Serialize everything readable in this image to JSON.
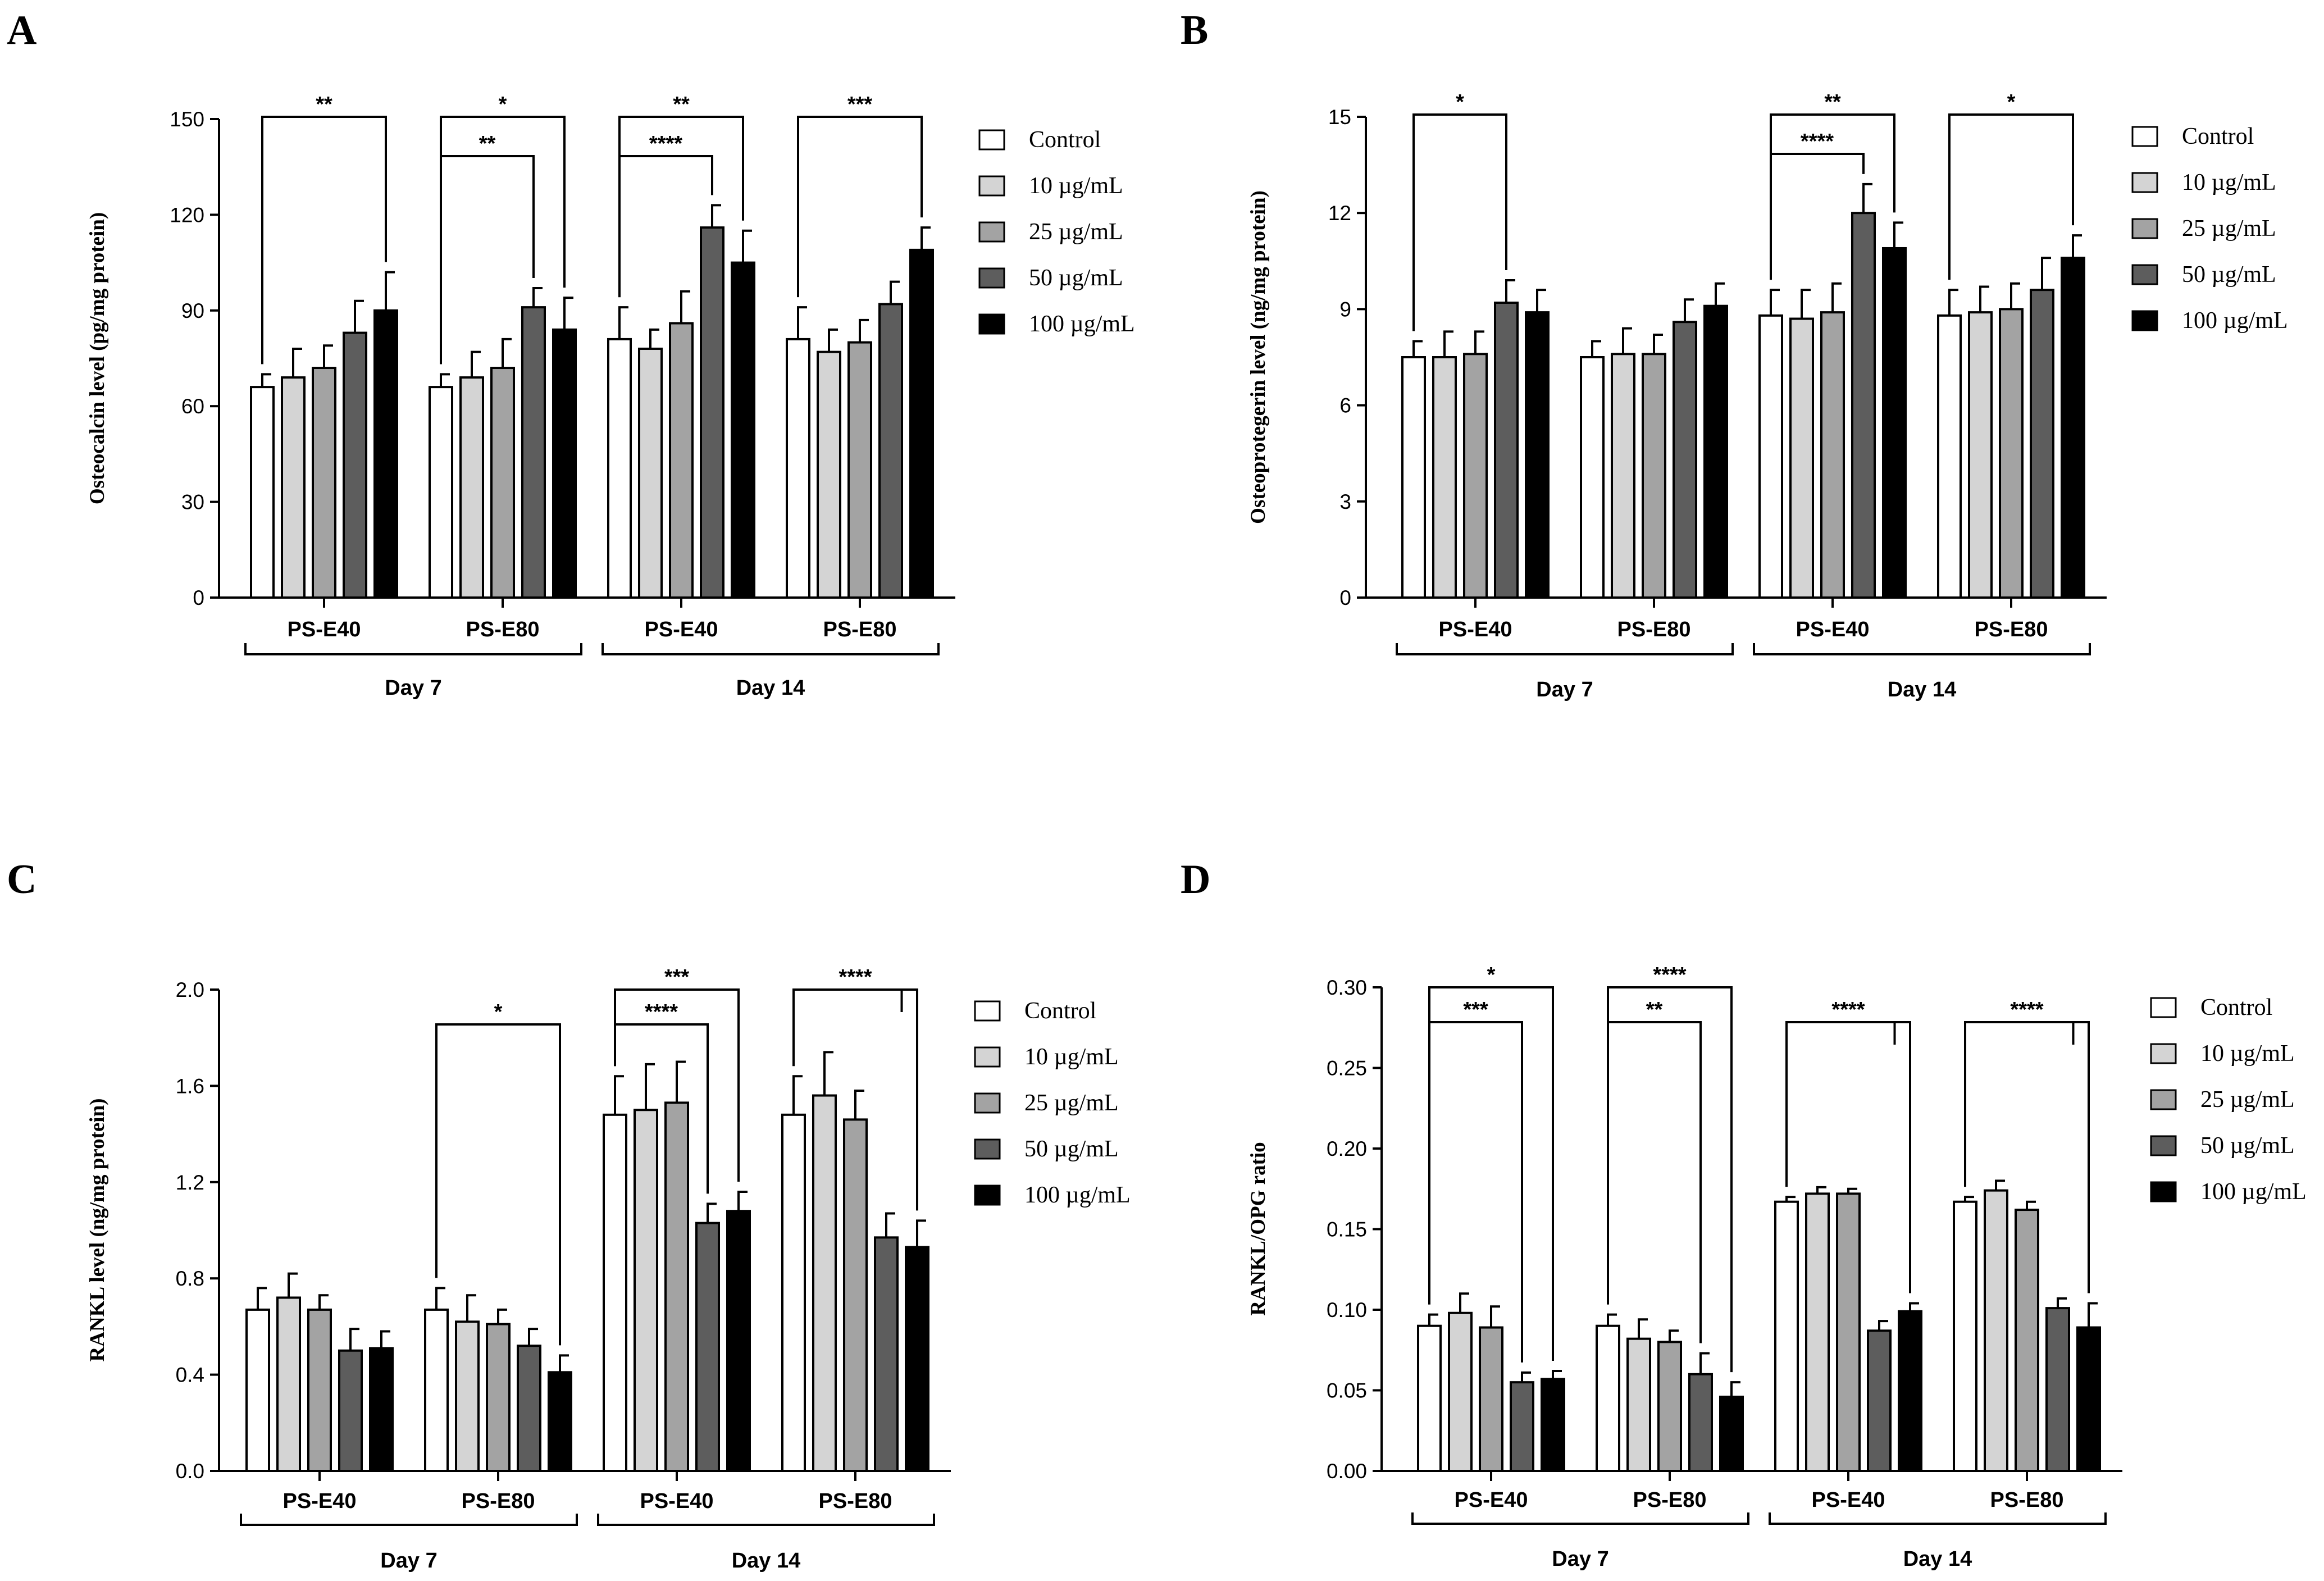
{
  "colors": {
    "control": "#ffffff",
    "c10": "#d4d4d4",
    "c25": "#a3a3a3",
    "c50": "#5d5d5d",
    "c100": "#000000",
    "ink": "#000000"
  },
  "legend": [
    "Control",
    "10 µg/mL",
    "25 µg/mL",
    "50 µg/mL",
    "100 µg/mL"
  ],
  "chart_data": [
    {
      "panel": "A",
      "type": "bar",
      "ylabel": "Osteocalcin level (pg/mg protein)",
      "ylim": [
        0,
        150
      ],
      "yticks": [
        "0",
        "30",
        "60",
        "90",
        "120",
        "150"
      ],
      "categories": [
        "PS-E40",
        "PS-E80",
        "PS-E40",
        "PS-E80"
      ],
      "groups": [
        {
          "label": "Day 7",
          "span": [
            0,
            1
          ]
        },
        {
          "label": "Day 14",
          "span": [
            2,
            3
          ]
        }
      ],
      "series": [
        {
          "name": "Control",
          "values": [
            66,
            66,
            81,
            81
          ],
          "errors": [
            4,
            4,
            10,
            10
          ]
        },
        {
          "name": "10 µg/mL",
          "values": [
            69,
            69,
            78,
            77
          ],
          "errors": [
            9,
            8,
            6,
            7
          ]
        },
        {
          "name": "25 µg/mL",
          "values": [
            72,
            72,
            86,
            80
          ],
          "errors": [
            7,
            9,
            10,
            7
          ]
        },
        {
          "name": "50 µg/mL",
          "values": [
            83,
            91,
            116,
            92
          ],
          "errors": [
            10,
            6,
            7,
            7
          ]
        },
        {
          "name": "100 µg/mL",
          "values": [
            90,
            84,
            105,
            109
          ],
          "errors": [
            12,
            10,
            10,
            7
          ]
        }
      ],
      "annotations": [
        {
          "text": "**",
          "cat": 0,
          "from": 0,
          "to": 4,
          "level": 1
        },
        {
          "text": "*",
          "cat": 1,
          "from": 0,
          "to": 4,
          "level": 1
        },
        {
          "text": "**",
          "cat": 1,
          "from": 0,
          "to": 3,
          "level": 0
        },
        {
          "text": "**",
          "cat": 2,
          "from": 0,
          "to": 4,
          "level": 1
        },
        {
          "text": "****",
          "cat": 2,
          "from": 0,
          "to": 3,
          "level": 0
        },
        {
          "text": "***",
          "cat": 3,
          "from": 0,
          "to": 4,
          "level": 1
        }
      ]
    },
    {
      "panel": "B",
      "type": "bar",
      "ylabel": "Osteoprotegerin level (ng/mg protein)",
      "ylim": [
        0,
        15
      ],
      "yticks": [
        "0",
        "3",
        "6",
        "9",
        "12",
        "15"
      ],
      "categories": [
        "PS-E40",
        "PS-E80",
        "PS-E40",
        "PS-E80"
      ],
      "groups": [
        {
          "label": "Day 7",
          "span": [
            0,
            1
          ]
        },
        {
          "label": "Day 14",
          "span": [
            2,
            3
          ]
        }
      ],
      "series": [
        {
          "name": "Control",
          "values": [
            7.5,
            7.5,
            8.8,
            8.8
          ],
          "errors": [
            0.5,
            0.5,
            0.8,
            0.8
          ]
        },
        {
          "name": "10 µg/mL",
          "values": [
            7.5,
            7.6,
            8.7,
            8.9
          ],
          "errors": [
            0.8,
            0.8,
            0.9,
            0.8
          ]
        },
        {
          "name": "25 µg/mL",
          "values": [
            7.6,
            7.6,
            8.9,
            9.0
          ],
          "errors": [
            0.7,
            0.6,
            0.9,
            0.8
          ]
        },
        {
          "name": "50 µg/mL",
          "values": [
            9.2,
            8.6,
            12.0,
            9.6
          ],
          "errors": [
            0.7,
            0.7,
            0.9,
            1.0
          ]
        },
        {
          "name": "100 µg/mL",
          "values": [
            8.9,
            9.1,
            10.9,
            10.6
          ],
          "errors": [
            0.7,
            0.7,
            0.8,
            0.7
          ]
        }
      ],
      "annotations": [
        {
          "text": "*",
          "cat": 0,
          "from": 0,
          "to": 3,
          "level": 1
        },
        {
          "text": "**",
          "cat": 2,
          "from": 0,
          "to": 4,
          "level": 1
        },
        {
          "text": "****",
          "cat": 2,
          "from": 0,
          "to": 3,
          "level": 0
        },
        {
          "text": "*",
          "cat": 3,
          "from": 0,
          "to": 4,
          "level": 1
        }
      ]
    },
    {
      "panel": "C",
      "type": "bar",
      "ylabel": "RANKL level (ng/mg protein)",
      "ylim": [
        0,
        2.0
      ],
      "yticks": [
        "0.0",
        "0.4",
        "0.8",
        "1.2",
        "1.6",
        "2.0"
      ],
      "categories": [
        "PS-E40",
        "PS-E80",
        "PS-E40",
        "PS-E80"
      ],
      "groups": [
        {
          "label": "Day 7",
          "span": [
            0,
            1
          ]
        },
        {
          "label": "Day 14",
          "span": [
            2,
            3
          ]
        }
      ],
      "series": [
        {
          "name": "Control",
          "values": [
            0.67,
            0.67,
            1.48,
            1.48
          ],
          "errors": [
            0.09,
            0.09,
            0.16,
            0.16
          ]
        },
        {
          "name": "10 µg/mL",
          "values": [
            0.72,
            0.62,
            1.5,
            1.56
          ],
          "errors": [
            0.1,
            0.11,
            0.19,
            0.18
          ]
        },
        {
          "name": "25 µg/mL",
          "values": [
            0.67,
            0.61,
            1.53,
            1.46
          ],
          "errors": [
            0.06,
            0.06,
            0.17,
            0.12
          ]
        },
        {
          "name": "50 µg/mL",
          "values": [
            0.5,
            0.52,
            1.03,
            0.97
          ],
          "errors": [
            0.09,
            0.07,
            0.08,
            0.1
          ]
        },
        {
          "name": "100 µg/mL",
          "values": [
            0.51,
            0.41,
            1.08,
            0.93
          ],
          "errors": [
            0.07,
            0.07,
            0.08,
            0.11
          ]
        }
      ],
      "annotations": [
        {
          "text": "*",
          "cat": 1,
          "from": 0,
          "to": 4,
          "level": 0
        },
        {
          "text": "***",
          "cat": 2,
          "from": 0,
          "to": 4,
          "level": 1
        },
        {
          "text": "****",
          "cat": 2,
          "from": 0,
          "to": 3,
          "level": 0
        },
        {
          "text": "****",
          "cat": 3,
          "from": 0,
          "to": [
            3,
            4
          ],
          "level": 1
        }
      ]
    },
    {
      "panel": "D",
      "type": "bar",
      "ylabel": "RANKL/OPG ratio",
      "ylim": [
        0,
        0.3
      ],
      "yticks": [
        "0.00",
        "0.05",
        "0.10",
        "0.15",
        "0.20",
        "0.25",
        "0.30"
      ],
      "categories": [
        "PS-E40",
        "PS-E80",
        "PS-E40",
        "PS-E80"
      ],
      "groups": [
        {
          "label": "Day 7",
          "span": [
            0,
            1
          ]
        },
        {
          "label": "Day 14",
          "span": [
            2,
            3
          ]
        }
      ],
      "series": [
        {
          "name": "Control",
          "values": [
            0.09,
            0.09,
            0.167,
            0.167
          ],
          "errors": [
            0.007,
            0.007,
            0.003,
            0.003
          ]
        },
        {
          "name": "10 µg/mL",
          "values": [
            0.098,
            0.082,
            0.172,
            0.174
          ],
          "errors": [
            0.012,
            0.012,
            0.004,
            0.006
          ]
        },
        {
          "name": "25 µg/mL",
          "values": [
            0.089,
            0.08,
            0.172,
            0.162
          ],
          "errors": [
            0.013,
            0.007,
            0.003,
            0.005
          ]
        },
        {
          "name": "50 µg/mL",
          "values": [
            0.055,
            0.06,
            0.087,
            0.101
          ],
          "errors": [
            0.006,
            0.013,
            0.006,
            0.006
          ]
        },
        {
          "name": "100 µg/mL",
          "values": [
            0.057,
            0.046,
            0.099,
            0.089
          ],
          "errors": [
            0.005,
            0.009,
            0.005,
            0.015
          ]
        }
      ],
      "annotations": [
        {
          "text": "*",
          "cat": 0,
          "from": 0,
          "to": 4,
          "level": 1
        },
        {
          "text": "***",
          "cat": 0,
          "from": 0,
          "to": 3,
          "level": 0
        },
        {
          "text": "****",
          "cat": 1,
          "from": 0,
          "to": 4,
          "level": 1
        },
        {
          "text": "**",
          "cat": 1,
          "from": 0,
          "to": 3,
          "level": 0
        },
        {
          "text": "****",
          "cat": 2,
          "from": 0,
          "to": [
            3,
            4
          ],
          "level": 0
        },
        {
          "text": "****",
          "cat": 3,
          "from": 0,
          "to": [
            3,
            4
          ],
          "level": 0
        }
      ]
    }
  ]
}
